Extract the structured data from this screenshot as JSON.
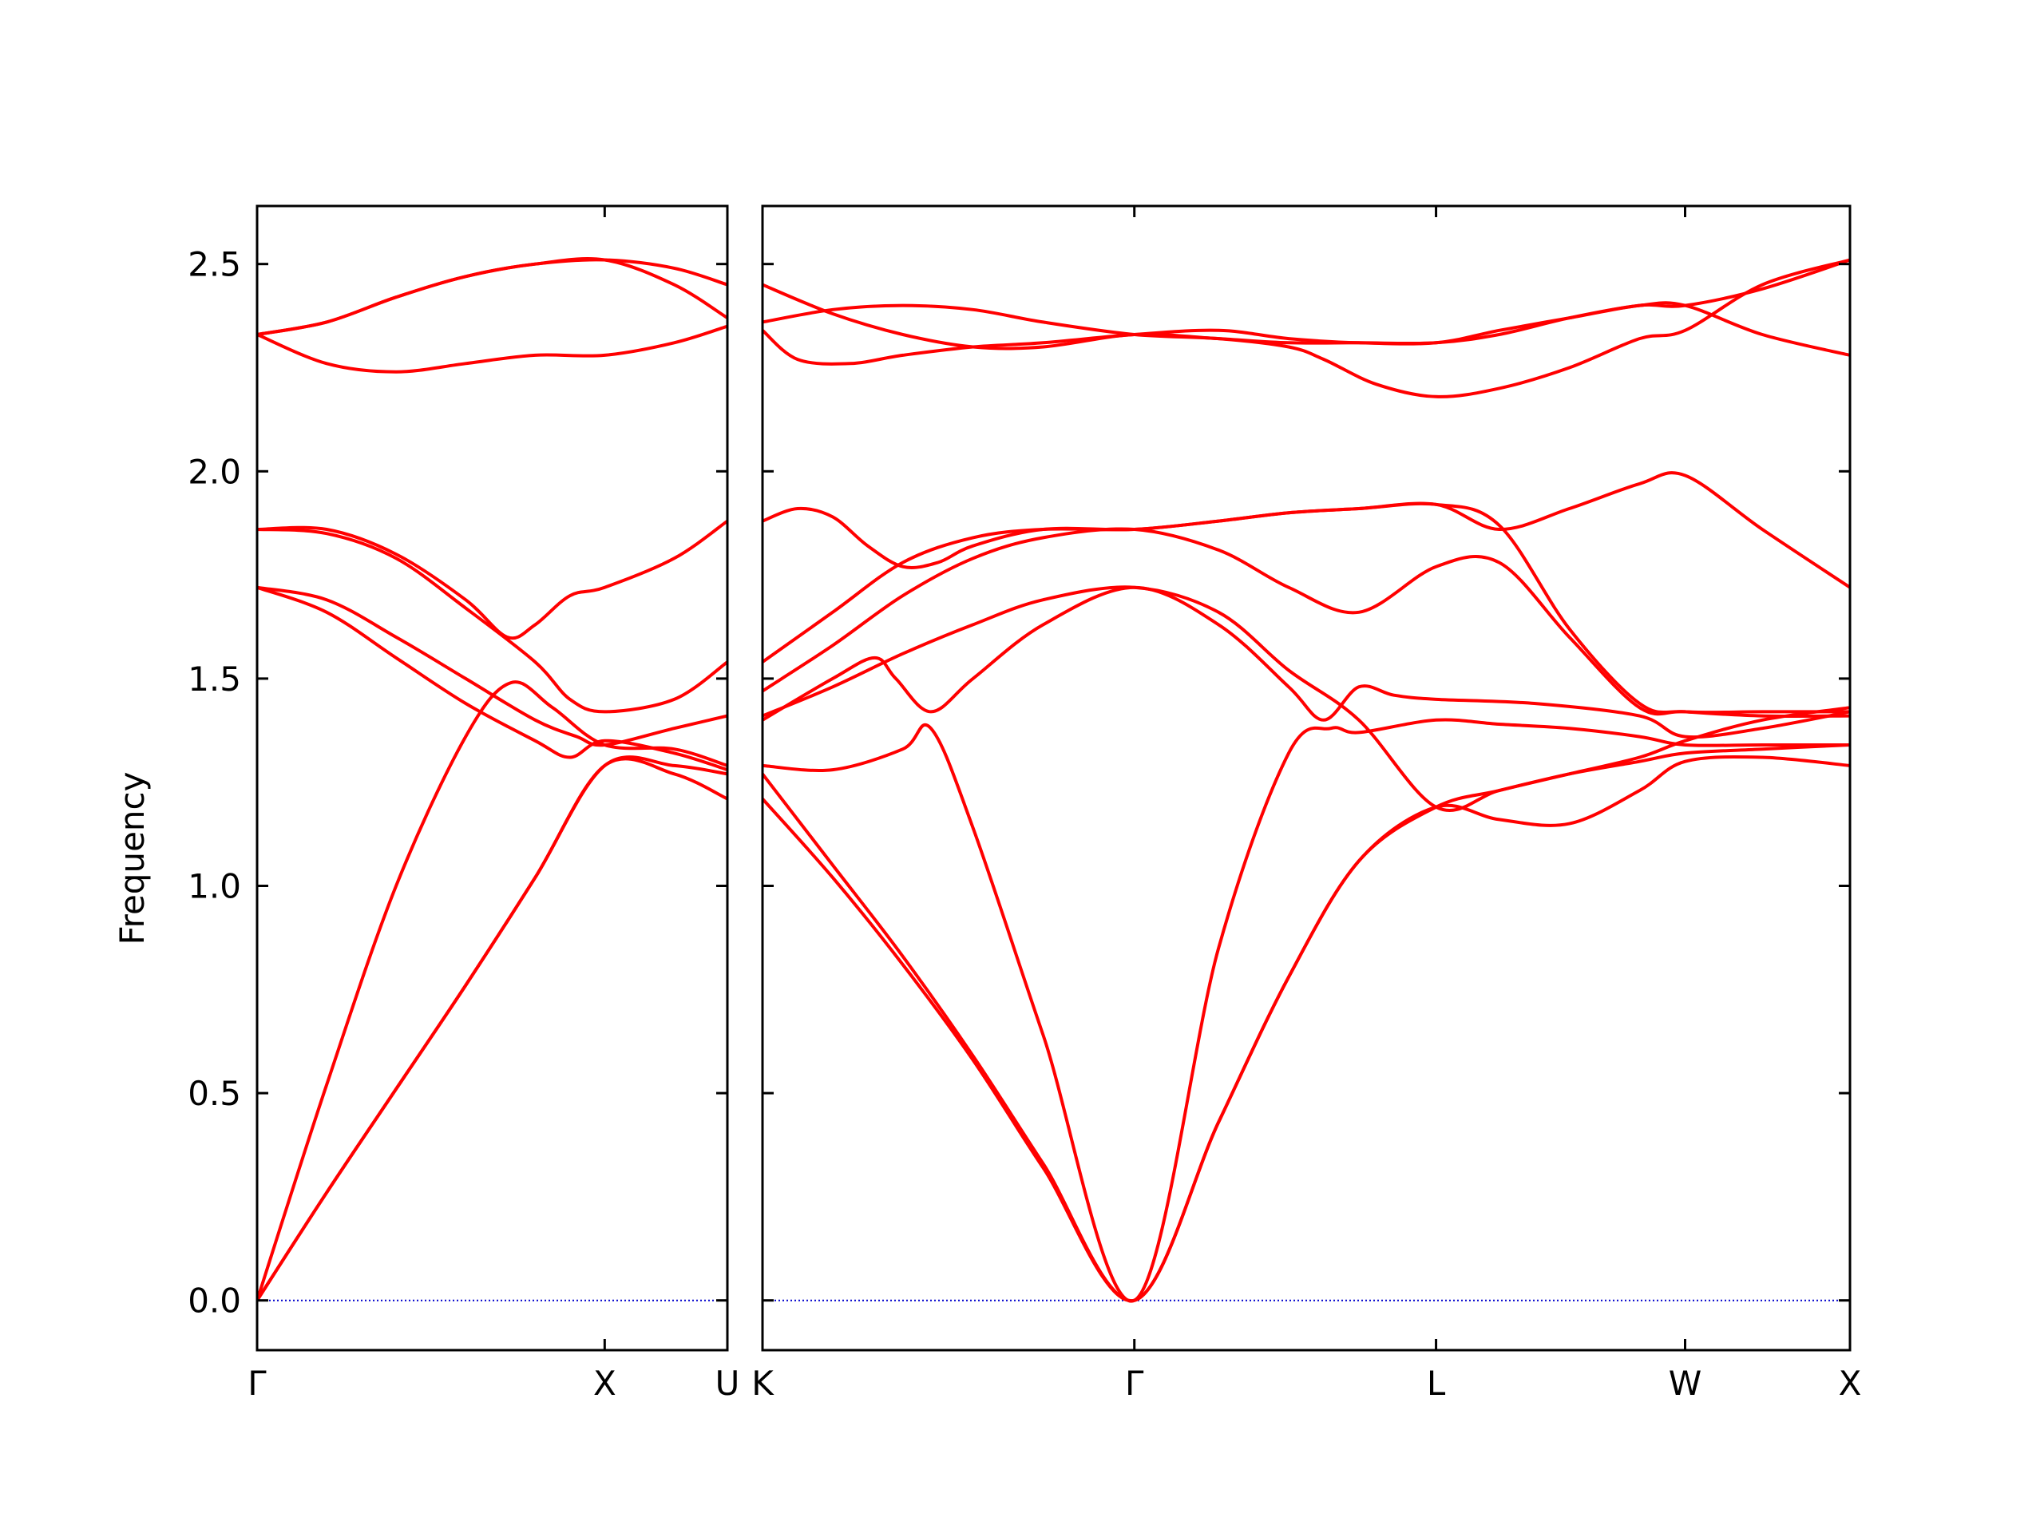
{
  "chart_data": {
    "type": "line",
    "ylabel": "Frequency",
    "ylim": [
      -0.12,
      2.64
    ],
    "yticks": [
      0.0,
      0.5,
      1.0,
      1.5,
      2.0,
      2.5
    ],
    "ytick_labels": [
      "0.0",
      "0.5",
      "1.0",
      "1.5",
      "2.0",
      "2.5"
    ],
    "grid": false,
    "legend": "none",
    "line_color": "#ff0000",
    "zero_line_color": "#0000cc",
    "frame_color": "#000000",
    "panels": [
      {
        "x_range": [
          0,
          1.353
        ],
        "points": [
          {
            "label": "Γ",
            "x": 0.0
          },
          {
            "label": "X",
            "x": 1.0
          },
          {
            "label": "U",
            "x": 1.353
          }
        ],
        "series": [
          {
            "x": [
              0,
              0.2,
              0.4,
              0.6,
              0.8,
              1.0,
              1.2,
              1.353
            ],
            "y": [
              0.0,
              0.26,
              0.51,
              0.76,
              1.02,
              1.29,
              1.27,
              1.21
            ]
          },
          {
            "x": [
              0,
              0.2,
              0.4,
              0.6,
              0.8,
              1.0,
              1.2,
              1.353
            ],
            "y": [
              0.0,
              0.26,
              0.51,
              0.76,
              1.02,
              1.29,
              1.29,
              1.27
            ]
          },
          {
            "x": [
              0,
              0.2,
              0.4,
              0.6,
              0.73,
              0.85,
              1.0,
              1.2,
              1.353
            ],
            "y": [
              0.0,
              0.52,
              1.0,
              1.36,
              1.49,
              1.43,
              1.34,
              1.33,
              1.29
            ]
          },
          {
            "x": [
              0,
              0.2,
              0.4,
              0.6,
              0.8,
              0.9,
              1.0,
              1.2,
              1.353
            ],
            "y": [
              1.72,
              1.66,
              1.55,
              1.44,
              1.35,
              1.31,
              1.35,
              1.32,
              1.28
            ]
          },
          {
            "x": [
              0,
              0.2,
              0.4,
              0.6,
              0.8,
              0.92,
              1.0,
              1.2,
              1.353
            ],
            "y": [
              1.72,
              1.69,
              1.6,
              1.5,
              1.4,
              1.36,
              1.34,
              1.38,
              1.41
            ]
          },
          {
            "x": [
              0,
              0.2,
              0.4,
              0.6,
              0.8,
              0.9,
              1.0,
              1.2,
              1.353
            ],
            "y": [
              1.86,
              1.85,
              1.79,
              1.67,
              1.54,
              1.45,
              1.42,
              1.45,
              1.54
            ]
          },
          {
            "x": [
              0,
              0.2,
              0.4,
              0.6,
              0.72,
              0.8,
              0.9,
              1.0,
              1.2,
              1.353
            ],
            "y": [
              1.86,
              1.86,
              1.8,
              1.69,
              1.6,
              1.63,
              1.7,
              1.72,
              1.79,
              1.88
            ]
          },
          {
            "x": [
              0,
              0.2,
              0.4,
              0.6,
              0.8,
              1.0,
              1.2,
              1.353
            ],
            "y": [
              2.33,
              2.26,
              2.24,
              2.26,
              2.28,
              2.28,
              2.31,
              2.35
            ]
          },
          {
            "x": [
              0,
              0.2,
              0.4,
              0.6,
              0.8,
              1.0,
              1.2,
              1.353
            ],
            "y": [
              2.33,
              2.36,
              2.42,
              2.47,
              2.5,
              2.51,
              2.45,
              2.37
            ]
          },
          {
            "x": [
              0,
              0.2,
              0.4,
              0.6,
              0.8,
              1.0,
              1.2,
              1.353
            ],
            "y": [
              2.33,
              2.36,
              2.42,
              2.47,
              2.5,
              2.51,
              2.49,
              2.45
            ]
          },
          {
            "x": [
              0,
              1.353
            ],
            "y": [
              2.33,
              2.33
            ],
            "hidden": true
          }
        ]
      },
      {
        "x_range": [
          0,
          3.1
        ],
        "points": [
          {
            "label": "K",
            "x": 0.0
          },
          {
            "label": "Γ",
            "x": 1.06
          },
          {
            "label": "L",
            "x": 1.92
          },
          {
            "label": "W",
            "x": 2.63
          },
          {
            "label": "X",
            "x": 3.1
          }
        ],
        "series": [
          {
            "x": [
              0,
              0.2,
              0.4,
              0.6,
              0.8,
              1.06,
              1.3,
              1.5,
              1.7,
              1.92,
              2.1,
              2.3,
              2.5,
              2.63,
              2.85,
              3.1
            ],
            "y": [
              1.21,
              1.02,
              0.81,
              0.58,
              0.32,
              0.0,
              0.43,
              0.78,
              1.06,
              1.19,
              1.16,
              1.15,
              1.23,
              1.3,
              1.31,
              1.29
            ]
          },
          {
            "x": [
              0,
              0.2,
              0.4,
              0.6,
              0.8,
              1.06,
              1.3,
              1.5,
              1.7,
              1.92,
              2.1,
              2.3,
              2.5,
              2.63,
              2.85,
              3.1
            ],
            "y": [
              1.27,
              1.05,
              0.83,
              0.59,
              0.33,
              0.0,
              0.43,
              0.78,
              1.06,
              1.19,
              1.23,
              1.27,
              1.3,
              1.32,
              1.33,
              1.34
            ]
          },
          {
            "x": [
              0,
              0.2,
              0.4,
              0.48,
              0.6,
              0.8,
              1.06,
              1.3,
              1.5,
              1.62,
              1.7,
              1.92,
              2.1,
              2.3,
              2.5,
              2.63,
              2.85,
              3.1
            ],
            "y": [
              1.29,
              1.28,
              1.33,
              1.38,
              1.14,
              0.64,
              0.0,
              0.85,
              1.32,
              1.38,
              1.37,
              1.4,
              1.39,
              1.38,
              1.36,
              1.34,
              1.34,
              1.34
            ]
          },
          {
            "x": [
              0,
              0.2,
              0.32,
              0.38,
              0.48,
              0.6,
              0.8,
              1.06,
              1.3,
              1.5,
              1.6,
              1.7,
              1.8,
              1.92,
              2.2,
              2.5,
              2.63,
              2.85,
              3.1
            ],
            "y": [
              1.4,
              1.5,
              1.55,
              1.5,
              1.42,
              1.5,
              1.63,
              1.72,
              1.63,
              1.48,
              1.4,
              1.48,
              1.46,
              1.45,
              1.44,
              1.41,
              1.36,
              1.38,
              1.42
            ]
          },
          {
            "x": [
              0,
              0.2,
              0.4,
              0.6,
              0.8,
              1.06,
              1.3,
              1.5,
              1.7,
              1.92,
              2.1,
              2.3,
              2.5,
              2.63,
              2.85,
              3.1
            ],
            "y": [
              1.41,
              1.48,
              1.56,
              1.63,
              1.69,
              1.72,
              1.66,
              1.52,
              1.4,
              1.19,
              1.23,
              1.27,
              1.31,
              1.35,
              1.4,
              1.43
            ]
          },
          {
            "x": [
              0,
              0.2,
              0.4,
              0.6,
              0.8,
              1.06,
              1.3,
              1.5,
              1.7,
              1.92,
              2.1,
              2.3,
              2.5,
              2.63,
              2.85,
              3.1
            ],
            "y": [
              1.47,
              1.58,
              1.7,
              1.79,
              1.84,
              1.86,
              1.81,
              1.72,
              1.66,
              1.77,
              1.78,
              1.6,
              1.43,
              1.42,
              1.41,
              1.41
            ]
          },
          {
            "x": [
              0,
              0.2,
              0.4,
              0.6,
              0.8,
              1.06,
              1.3,
              1.5,
              1.7,
              1.92,
              2.1,
              2.3,
              2.5,
              2.63,
              2.85,
              3.1
            ],
            "y": [
              1.54,
              1.66,
              1.78,
              1.84,
              1.86,
              1.86,
              1.88,
              1.9,
              1.91,
              1.92,
              1.87,
              1.62,
              1.44,
              1.42,
              1.42,
              1.42
            ]
          },
          {
            "x": [
              0,
              0.1,
              0.2,
              0.3,
              0.4,
              0.5,
              0.6,
              0.8,
              1.06,
              1.3,
              1.5,
              1.7,
              1.92,
              2.1,
              2.3,
              2.5,
              2.63,
              2.85,
              3.1
            ],
            "y": [
              1.88,
              1.91,
              1.89,
              1.82,
              1.77,
              1.78,
              1.82,
              1.86,
              1.86,
              1.88,
              1.9,
              1.91,
              1.92,
              1.86,
              1.91,
              1.97,
              1.99,
              1.86,
              1.72
            ]
          },
          {
            "x": [
              0,
              0.1,
              0.25,
              0.4,
              0.6,
              0.8,
              1.06,
              1.3,
              1.5,
              1.7,
              1.92,
              2.1,
              2.3,
              2.5,
              2.63,
              2.85,
              3.1
            ],
            "y": [
              2.34,
              2.27,
              2.26,
              2.28,
              2.3,
              2.31,
              2.33,
              2.34,
              2.32,
              2.31,
              2.31,
              2.34,
              2.37,
              2.4,
              2.4,
              2.44,
              2.51
            ]
          },
          {
            "x": [
              0,
              0.2,
              0.4,
              0.6,
              0.8,
              1.06,
              1.3,
              1.5,
              1.7,
              1.92,
              2.1,
              2.3,
              2.5,
              2.63,
              2.85,
              3.1
            ],
            "y": [
              2.45,
              2.38,
              2.33,
              2.3,
              2.3,
              2.33,
              2.32,
              2.31,
              2.31,
              2.31,
              2.33,
              2.37,
              2.4,
              2.4,
              2.33,
              2.28
            ]
          },
          {
            "x": [
              0,
              0.2,
              0.4,
              0.6,
              0.8,
              1.06,
              1.3,
              1.5,
              1.6,
              1.75,
              1.92,
              2.1,
              2.3,
              2.5,
              2.63,
              2.85,
              3.1
            ],
            "y": [
              2.36,
              2.39,
              2.4,
              2.39,
              2.36,
              2.33,
              2.32,
              2.3,
              2.27,
              2.21,
              2.18,
              2.2,
              2.25,
              2.32,
              2.34,
              2.45,
              2.51
            ]
          }
        ]
      }
    ]
  }
}
